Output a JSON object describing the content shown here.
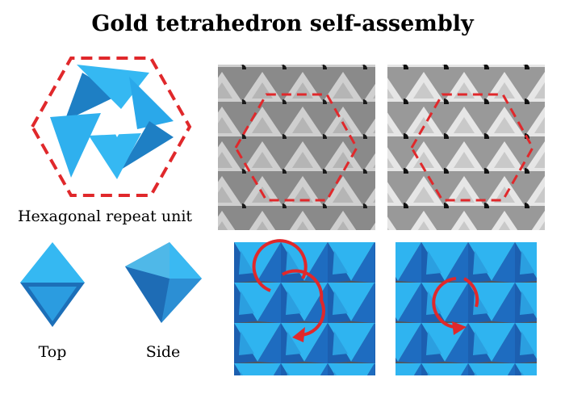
{
  "title": "Gold tetrahedron self-assembly",
  "labels": {
    "hexagonal_repeat_unit": "Hexagonal repeat unit",
    "top": "Top",
    "side": "Side"
  }
}
